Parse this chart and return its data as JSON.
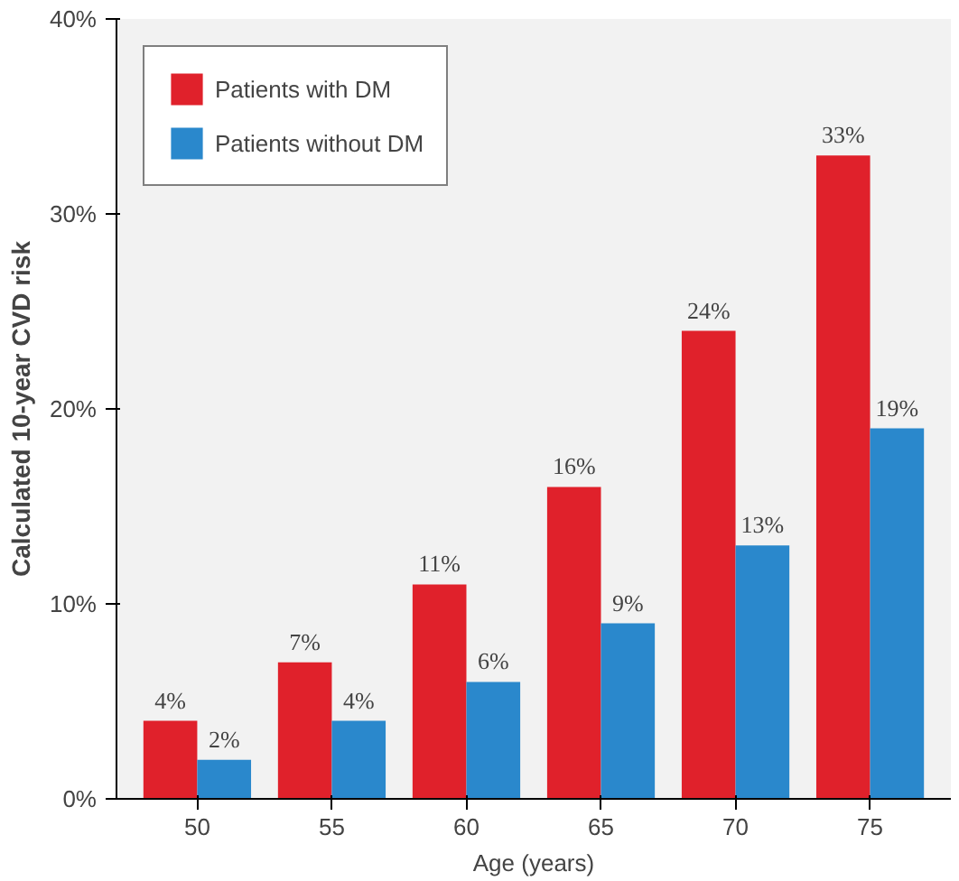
{
  "chart_data": {
    "type": "bar",
    "xlabel": "Age (years)",
    "ylabel": "Calculated 10-year CVD risk",
    "categories": [
      "50",
      "55",
      "60",
      "65",
      "70",
      "75"
    ],
    "series": [
      {
        "name": "Patients with DM",
        "color": "#e0212b",
        "values": [
          4,
          7,
          11,
          16,
          24,
          33
        ],
        "value_labels": [
          "4%",
          "7%",
          "11%",
          "16%",
          "24%",
          "33%"
        ]
      },
      {
        "name": "Patients without DM",
        "color": "#2a88cc",
        "values": [
          2,
          4,
          6,
          9,
          13,
          19
        ],
        "value_labels": [
          "2%",
          "4%",
          "6%",
          "9%",
          "13%",
          "19%"
        ]
      }
    ],
    "ylim": [
      0,
      40
    ],
    "yticks": [
      {
        "value": 0,
        "label": "0%"
      },
      {
        "value": 10,
        "label": "10%"
      },
      {
        "value": 20,
        "label": "20%"
      },
      {
        "value": 30,
        "label": "30%"
      },
      {
        "value": 40,
        "label": "40%"
      }
    ],
    "grid": false,
    "legend": "top left"
  }
}
